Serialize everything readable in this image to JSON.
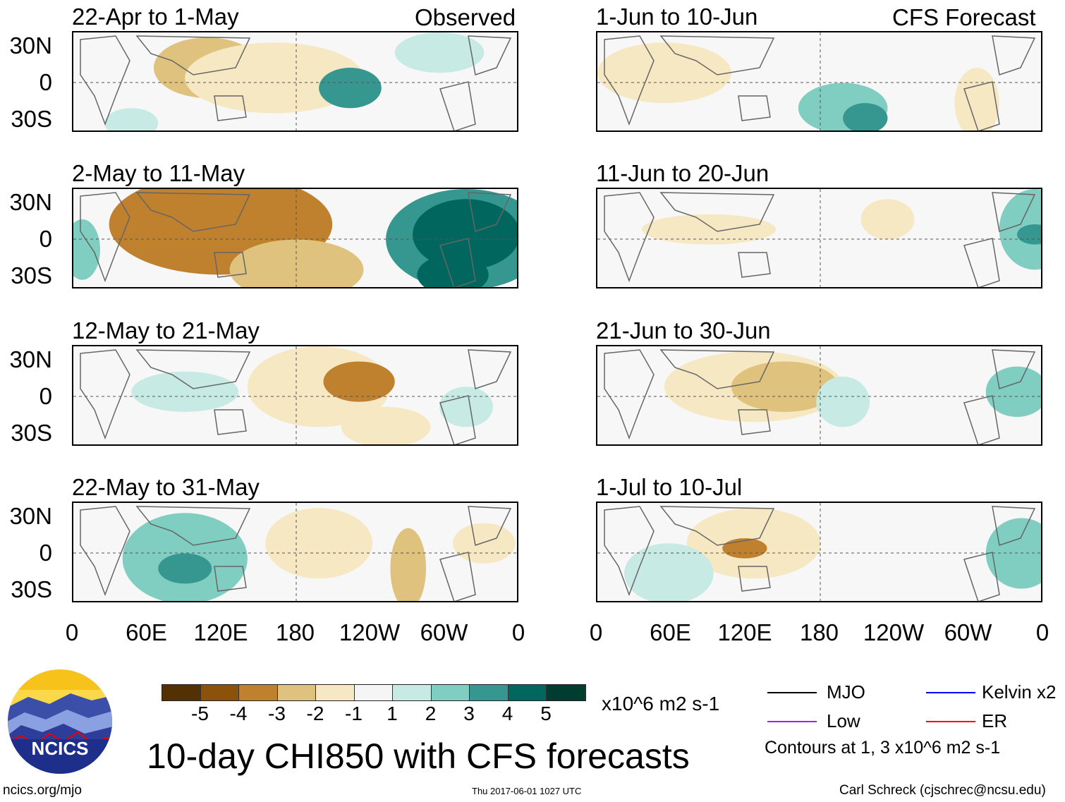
{
  "columns": {
    "left_label": "Observed",
    "right_label": "CFS Forecast"
  },
  "panels": [
    {
      "title": "22-Apr to 1-May",
      "col": "left"
    },
    {
      "title": "2-May to 11-May",
      "col": "left"
    },
    {
      "title": "12-May to 21-May",
      "col": "left"
    },
    {
      "title": "22-May to 31-May",
      "col": "left"
    },
    {
      "title": "1-Jun to 10-Jun",
      "col": "right"
    },
    {
      "title": "11-Jun to 20-Jun",
      "col": "right"
    },
    {
      "title": "21-Jun to 30-Jun",
      "col": "right"
    },
    {
      "title": "1-Jul to 10-Jul",
      "col": "right"
    }
  ],
  "lat_labels": [
    "30N",
    "0",
    "30S"
  ],
  "lon_labels": [
    "0",
    "60E",
    "120E",
    "180",
    "120W",
    "60W",
    "0"
  ],
  "colorbar": {
    "labels": [
      "-5",
      "-4",
      "-3",
      "-2",
      "-1",
      "1",
      "2",
      "3",
      "4",
      "5"
    ],
    "colors": [
      "#543005",
      "#8c510a",
      "#bf812d",
      "#dfc27d",
      "#f6e8c3",
      "#f5f5f5",
      "#c7eae5",
      "#80cdc1",
      "#35978f",
      "#01665e",
      "#003c30"
    ],
    "units": "x10^6 m2 s-1"
  },
  "legend": {
    "mjo": "MJO",
    "kelvin": "Kelvin x2",
    "low": "Low",
    "er": "ER",
    "contours": "Contours at 1, 3 x10^6 m2 s-1",
    "colors": {
      "mjo": "#000000",
      "kelvin": "#0000ff",
      "low": "#a020f0",
      "er": "#ff0000"
    }
  },
  "title": "10-day CHI850 with CFS forecasts",
  "logo_text": "NCICS",
  "url": "ncics.org/mjo",
  "timestamp": "Thu 2017-06-01 1027 UTC",
  "credit": "Carl Schreck (cjschrec@ncsu.edu)"
}
